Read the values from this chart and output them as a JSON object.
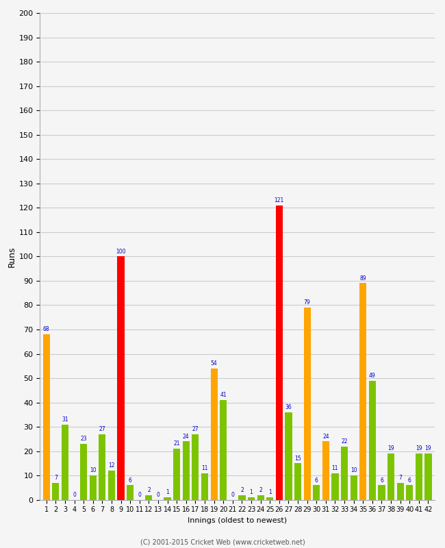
{
  "innings": [
    1,
    2,
    3,
    4,
    5,
    6,
    7,
    8,
    9,
    10,
    11,
    12,
    13,
    14,
    15,
    16,
    17,
    18,
    19,
    20,
    21,
    22,
    23,
    24,
    25,
    26,
    27,
    28,
    29,
    30,
    31,
    32,
    33,
    34,
    35,
    36,
    37,
    38,
    39,
    40,
    41,
    42
  ],
  "values": [
    68,
    7,
    31,
    0,
    23,
    10,
    27,
    12,
    100,
    6,
    0,
    2,
    0,
    1,
    21,
    24,
    27,
    11,
    54,
    41,
    0,
    2,
    1,
    2,
    1,
    121,
    36,
    15,
    79,
    6,
    24,
    11,
    22,
    10,
    89,
    49,
    6,
    19,
    7,
    6,
    19,
    19
  ],
  "colors": [
    "orange",
    "#7dc400",
    "#7dc400",
    "#7dc400",
    "#7dc400",
    "#7dc400",
    "#7dc400",
    "#7dc400",
    "red",
    "#7dc400",
    "orange",
    "#7dc400",
    "orange",
    "#7dc400",
    "#7dc400",
    "#7dc400",
    "#7dc400",
    "#7dc400",
    "orange",
    "#7dc400",
    "orange",
    "#7dc400",
    "#7dc400",
    "#7dc400",
    "#7dc400",
    "red",
    "#7dc400",
    "#7dc400",
    "orange",
    "#7dc400",
    "orange",
    "#7dc400",
    "#7dc400",
    "#7dc400",
    "orange",
    "#7dc400",
    "#7dc400",
    "#7dc400",
    "#7dc400",
    "#7dc400",
    "#7dc400",
    "#7dc400"
  ],
  "ylabel": "Runs",
  "xlabel": "Innings (oldest to newest)",
  "ylim": [
    0,
    200
  ],
  "yticks": [
    0,
    10,
    20,
    30,
    40,
    50,
    60,
    70,
    80,
    90,
    100,
    110,
    120,
    130,
    140,
    150,
    160,
    170,
    180,
    190,
    200
  ],
  "footer": "(C) 2001-2015 Cricket Web (www.cricketweb.net)",
  "label_color": "#0000cc",
  "background_color": "#f5f5f5",
  "grid_color": "#cccccc"
}
